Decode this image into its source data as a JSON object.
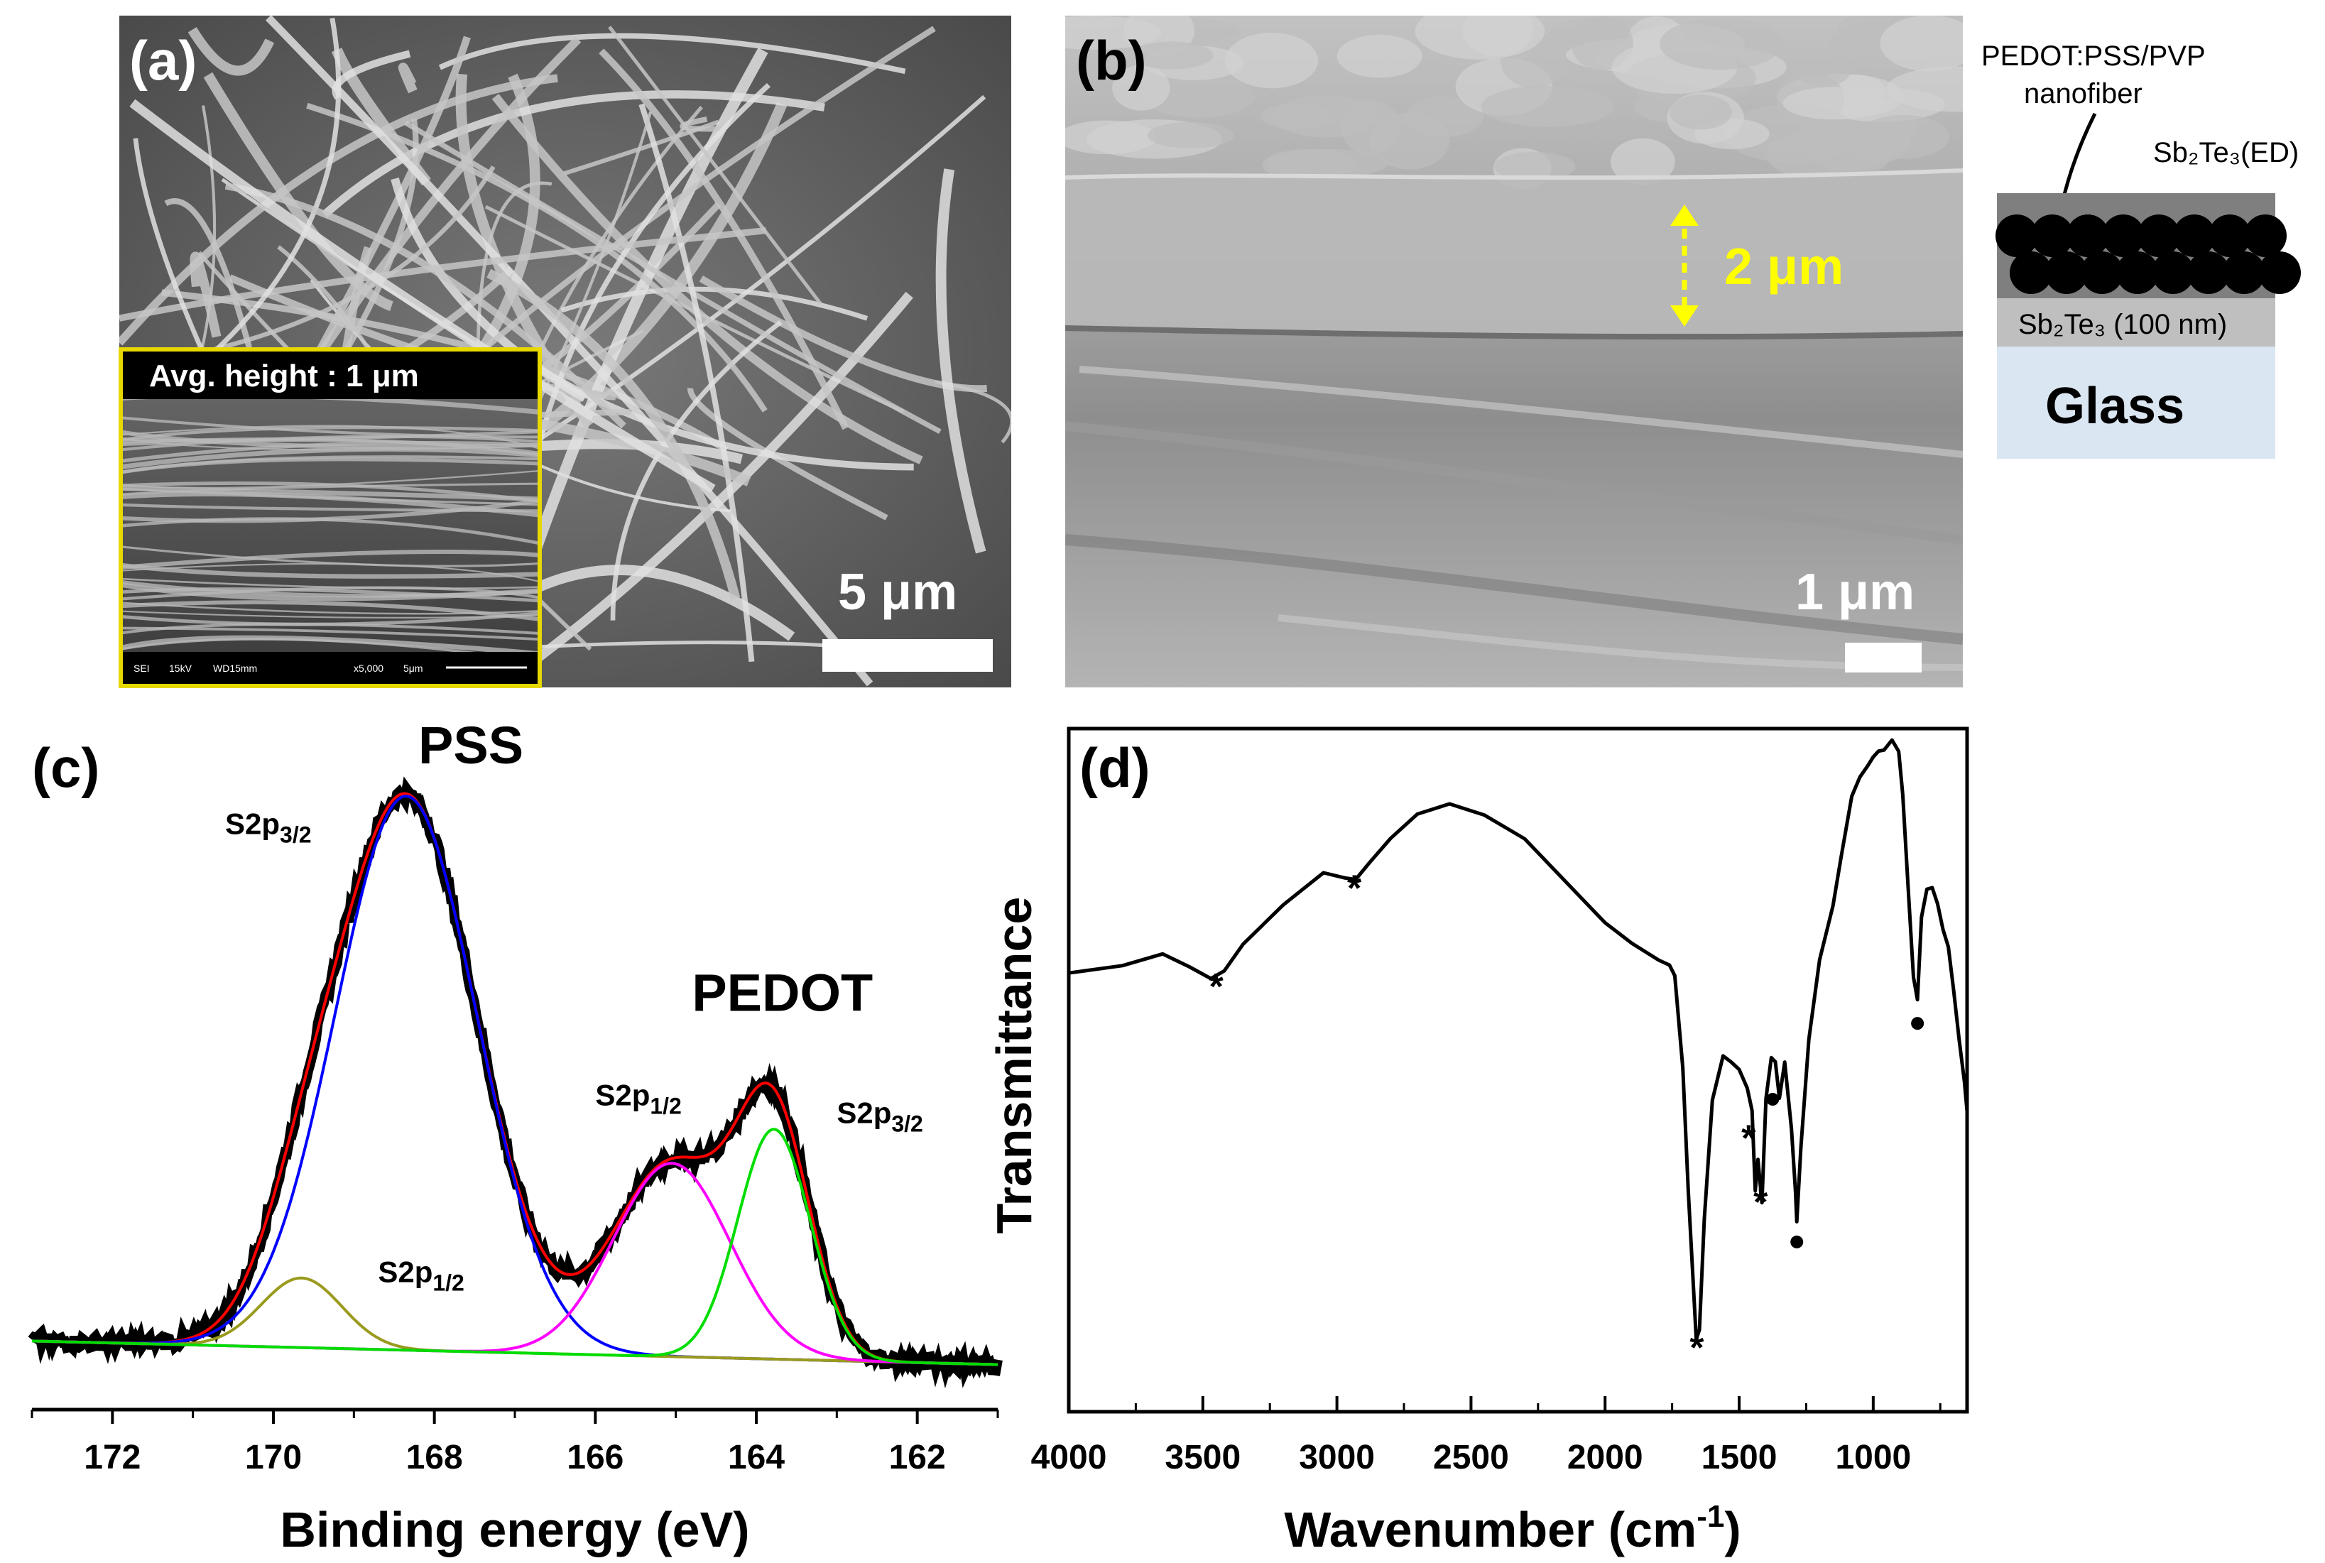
{
  "figure": {
    "panel_a": {
      "letter": "(a)",
      "scale_bar": "5 μm",
      "inset_label": "Avg. height : 1 μm",
      "inset_footer": [
        "SEI",
        "15kV",
        "WD15mm",
        "x5,000",
        "5μm"
      ]
    },
    "panel_b": {
      "letter": "(b)",
      "thickness_label": "2 μm",
      "scale_bar": "1 μm",
      "schematic": {
        "fiber_line1": "PEDOT:PSS/PVP",
        "fiber_line2": "nanofiber",
        "top_layer": "Sb₂Te₃(ED)",
        "middle_layer": "Sb₂Te₃ (100 nm)",
        "bottom_layer": "Glass"
      }
    },
    "panel_c": {
      "letter": "(c)"
    },
    "panel_d": {
      "letter": "(d)"
    }
  },
  "chart_data": [
    {
      "panel": "(c)",
      "type": "line",
      "xlabel": "Binding energy (eV)",
      "ylabel": "",
      "xlim": [
        173,
        161
      ],
      "ylim": [
        0,
        1.0
      ],
      "xticks": [
        172,
        170,
        168,
        166,
        164,
        162
      ],
      "annotations": [
        {
          "text": "PSS",
          "x": 168.2,
          "y": 1.0,
          "size": "large"
        },
        {
          "text": "PEDOT",
          "x": 164.8,
          "y": 0.58,
          "size": "large"
        },
        {
          "text": "S2p",
          "sub": "3/2",
          "x": 170.6,
          "y": 0.88
        },
        {
          "text": "S2p",
          "sub": "1/2",
          "x": 168.7,
          "y": 0.12
        },
        {
          "text": "S2p",
          "sub": "1/2",
          "x": 166.0,
          "y": 0.42
        },
        {
          "text": "S2p",
          "sub": "3/2",
          "x": 163.0,
          "y": 0.39
        }
      ],
      "series": [
        {
          "name": "experimental",
          "color": "#000000",
          "style": "thick",
          "components": "sum",
          "noise": 0.012
        },
        {
          "name": "envelope",
          "color": "#ff0000",
          "components": "sum"
        },
        {
          "name": "PSS S2p3/2",
          "color": "#0000ff",
          "center": 168.35,
          "height": 0.94,
          "width": 0.88
        },
        {
          "name": "PSS S2p1/2",
          "color": "#9a9a1e",
          "center": 169.65,
          "height": 0.118,
          "width": 0.5
        },
        {
          "name": "PEDOT S2p1/2",
          "color": "#ff00ff",
          "center": 165.05,
          "height": 0.328,
          "width": 0.72
        },
        {
          "name": "PEDOT S2p3/2",
          "color": "#00dd00",
          "center": 163.78,
          "height": 0.39,
          "width": 0.45
        }
      ],
      "baseline": {
        "start": 0.02,
        "end": -0.02
      }
    },
    {
      "panel": "(d)",
      "type": "line",
      "xlabel": "Wavenumber (cm",
      "xlabel_sup": "-1",
      "xlabel_tail": ")",
      "ylabel": "Transmittance",
      "xlim": [
        4000,
        650
      ],
      "ylim": [
        0,
        1.0
      ],
      "xticks": [
        4000,
        3500,
        3000,
        2500,
        2000,
        1500,
        1000
      ],
      "series": [
        {
          "name": "FTIR",
          "color": "#000000",
          "x": [
            4000,
            3800,
            3650,
            3550,
            3470,
            3420,
            3350,
            3200,
            3050,
            2970,
            2930,
            2880,
            2800,
            2700,
            2580,
            2450,
            2300,
            2150,
            2000,
            1900,
            1800,
            1760,
            1740,
            1710,
            1690,
            1660,
            1648,
            1630,
            1600,
            1560,
            1530,
            1500,
            1470,
            1452,
            1440,
            1430,
            1415,
            1400,
            1380,
            1365,
            1350,
            1330,
            1305,
            1290,
            1285,
            1270,
            1240,
            1200,
            1150,
            1120,
            1080,
            1050,
            1020,
            1000,
            980,
            960,
            930,
            905,
            890,
            870,
            850,
            835,
            820,
            800,
            780,
            760,
            740,
            720,
            700,
            680,
            660,
            650
          ],
          "y": [
            0.608,
            0.622,
            0.64,
            0.618,
            0.598,
            0.61,
            0.655,
            0.72,
            0.775,
            0.765,
            0.76,
            0.79,
            0.83,
            0.87,
            0.885,
            0.87,
            0.83,
            0.76,
            0.69,
            0.655,
            0.63,
            0.62,
            0.602,
            0.45,
            0.25,
            0.005,
            0.02,
            0.2,
            0.4,
            0.47,
            0.46,
            0.45,
            0.42,
            0.38,
            0.25,
            0.3,
            0.23,
            0.4,
            0.47,
            0.46,
            0.4,
            0.46,
            0.35,
            0.25,
            0.2,
            0.32,
            0.5,
            0.63,
            0.72,
            0.8,
            0.9,
            0.93,
            0.95,
            0.962,
            0.975,
            0.975,
            0.99,
            0.975,
            0.9,
            0.75,
            0.6,
            0.562,
            0.7,
            0.745,
            0.75,
            0.72,
            0.68,
            0.65,
            0.58,
            0.5,
            0.43,
            0.38
          ]
        }
      ],
      "markers": [
        {
          "symbol": "*",
          "x": 3450,
          "y": 0.565
        },
        {
          "symbol": "*",
          "x": 2935,
          "y": 0.727
        },
        {
          "symbol": "*",
          "x": 1658,
          "y": -0.03
        },
        {
          "symbol": "*",
          "x": 1465,
          "y": 0.315
        },
        {
          "symbol": "*",
          "x": 1420,
          "y": 0.21
        },
        {
          "symbol": "•",
          "x": 1375,
          "y": 0.4
        },
        {
          "symbol": "•",
          "x": 1285,
          "y": 0.165
        },
        {
          "symbol": "•",
          "x": 835,
          "y": 0.525
        }
      ]
    }
  ]
}
